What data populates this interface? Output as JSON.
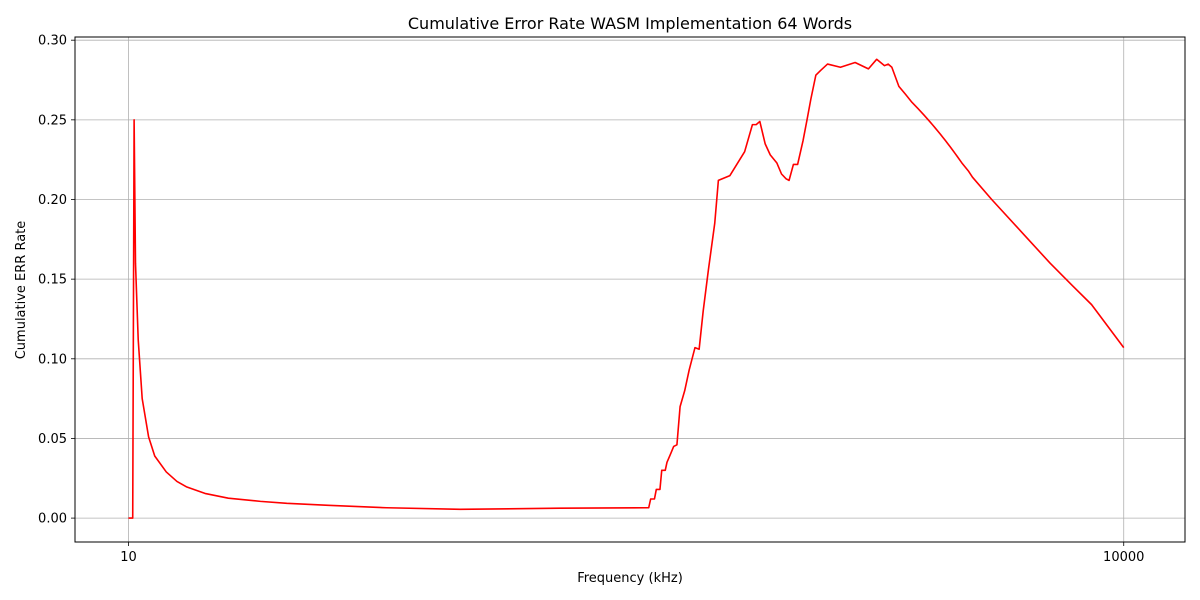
{
  "chart_data": {
    "type": "line",
    "title": "Cumulative Error Rate WASM Implementation 64 Words",
    "xlabel": "Frequency (kHz)",
    "ylabel": "Cumulative ERR Rate",
    "x_scale": "log",
    "xlim": [
      6.9,
      15300
    ],
    "ylim": [
      -0.015,
      0.302
    ],
    "grid": true,
    "x_ticks": [
      10,
      10000
    ],
    "x_tick_labels": [
      "10",
      "10000"
    ],
    "y_ticks": [
      0.0,
      0.05,
      0.1,
      0.15,
      0.2,
      0.25,
      0.3
    ],
    "y_tick_labels": [
      "0.00",
      "0.05",
      "0.10",
      "0.15",
      "0.20",
      "0.25",
      "0.30"
    ],
    "series": [
      {
        "name": "",
        "color": "#ff0000",
        "x": [
          10,
          10.3,
          10.4,
          10.5,
          10.7,
          11,
          11.5,
          12,
          13,
          14,
          15,
          17,
          20,
          25,
          30,
          40,
          60,
          100,
          200,
          370,
          375,
          385,
          390,
          400,
          405,
          415,
          420,
          430,
          440,
          450,
          460,
          475,
          490,
          510,
          525,
          540,
          560,
          585,
          600,
          650,
          720,
          760,
          780,
          800,
          830,
          860,
          900,
          930,
          960,
          980,
          1010,
          1040,
          1080,
          1110,
          1140,
          1180,
          1220,
          1280,
          1400,
          1550,
          1700,
          1800,
          1900,
          1950,
          2000,
          2100,
          2200,
          2300,
          2400,
          2500,
          2600,
          2650,
          2700,
          2750,
          2800,
          2850,
          2900,
          2950,
          3000,
          3050,
          3100,
          3150,
          3250,
          3400,
          3500,
          4000,
          5000,
          6000,
          7000,
          8000,
          10000
        ],
        "y": [
          0.0,
          0.0,
          0.25,
          0.16,
          0.112,
          0.075,
          0.051,
          0.039,
          0.029,
          0.023,
          0.0195,
          0.0155,
          0.0125,
          0.0105,
          0.0093,
          0.008,
          0.0065,
          0.0055,
          0.0062,
          0.0065,
          0.012,
          0.012,
          0.018,
          0.018,
          0.03,
          0.03,
          0.035,
          0.04,
          0.045,
          0.046,
          0.07,
          0.08,
          0.093,
          0.107,
          0.106,
          0.13,
          0.156,
          0.185,
          0.212,
          0.215,
          0.23,
          0.247,
          0.247,
          0.249,
          0.235,
          0.228,
          0.223,
          0.216,
          0.213,
          0.212,
          0.222,
          0.222,
          0.237,
          0.25,
          0.263,
          0.278,
          0.281,
          0.285,
          0.283,
          0.286,
          0.282,
          0.288,
          0.284,
          0.285,
          0.283,
          0.271,
          0.266,
          0.261,
          0.257,
          0.253,
          0.249,
          0.247,
          0.245,
          0.243,
          0.241,
          0.239,
          0.237,
          0.235,
          0.233,
          0.231,
          0.229,
          0.227,
          0.223,
          0.218,
          0.214,
          0.2,
          0.178,
          0.16,
          0.146,
          0.134,
          0.107
        ]
      }
    ]
  }
}
